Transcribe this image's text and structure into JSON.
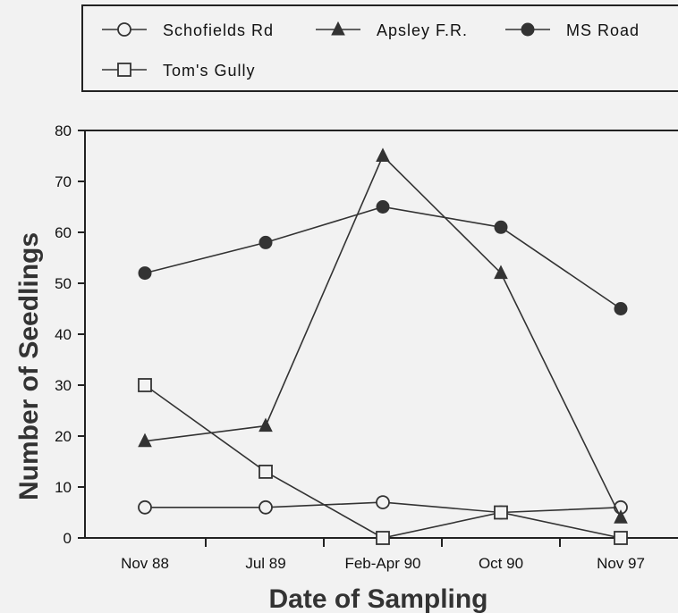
{
  "chart_data": {
    "type": "line",
    "xlabel": "Date of Sampling",
    "ylabel": "Number of Seedlings",
    "ylim": [
      0,
      80
    ],
    "yticks": [
      0,
      10,
      20,
      30,
      40,
      50,
      60,
      70,
      80
    ],
    "categories": [
      "Nov 88",
      "Jul 89",
      "Feb-Apr 90",
      "Oct 90",
      "Nov 97"
    ],
    "grid": false,
    "legend_position": "top",
    "series": [
      {
        "name": "Schofields Rd",
        "marker": "open-circle",
        "values": [
          6,
          6,
          7,
          5,
          6
        ]
      },
      {
        "name": "Apsley F.R.",
        "marker": "filled-triangle",
        "values": [
          19,
          22,
          75,
          52,
          4
        ]
      },
      {
        "name": "MS Road",
        "marker": "filled-circle",
        "values": [
          52,
          58,
          65,
          61,
          45
        ]
      },
      {
        "name": "Tom's Gully",
        "marker": "open-square",
        "values": [
          30,
          13,
          0,
          5,
          0
        ]
      }
    ],
    "colors": {
      "line": "#333333",
      "axis": "#222222"
    }
  }
}
